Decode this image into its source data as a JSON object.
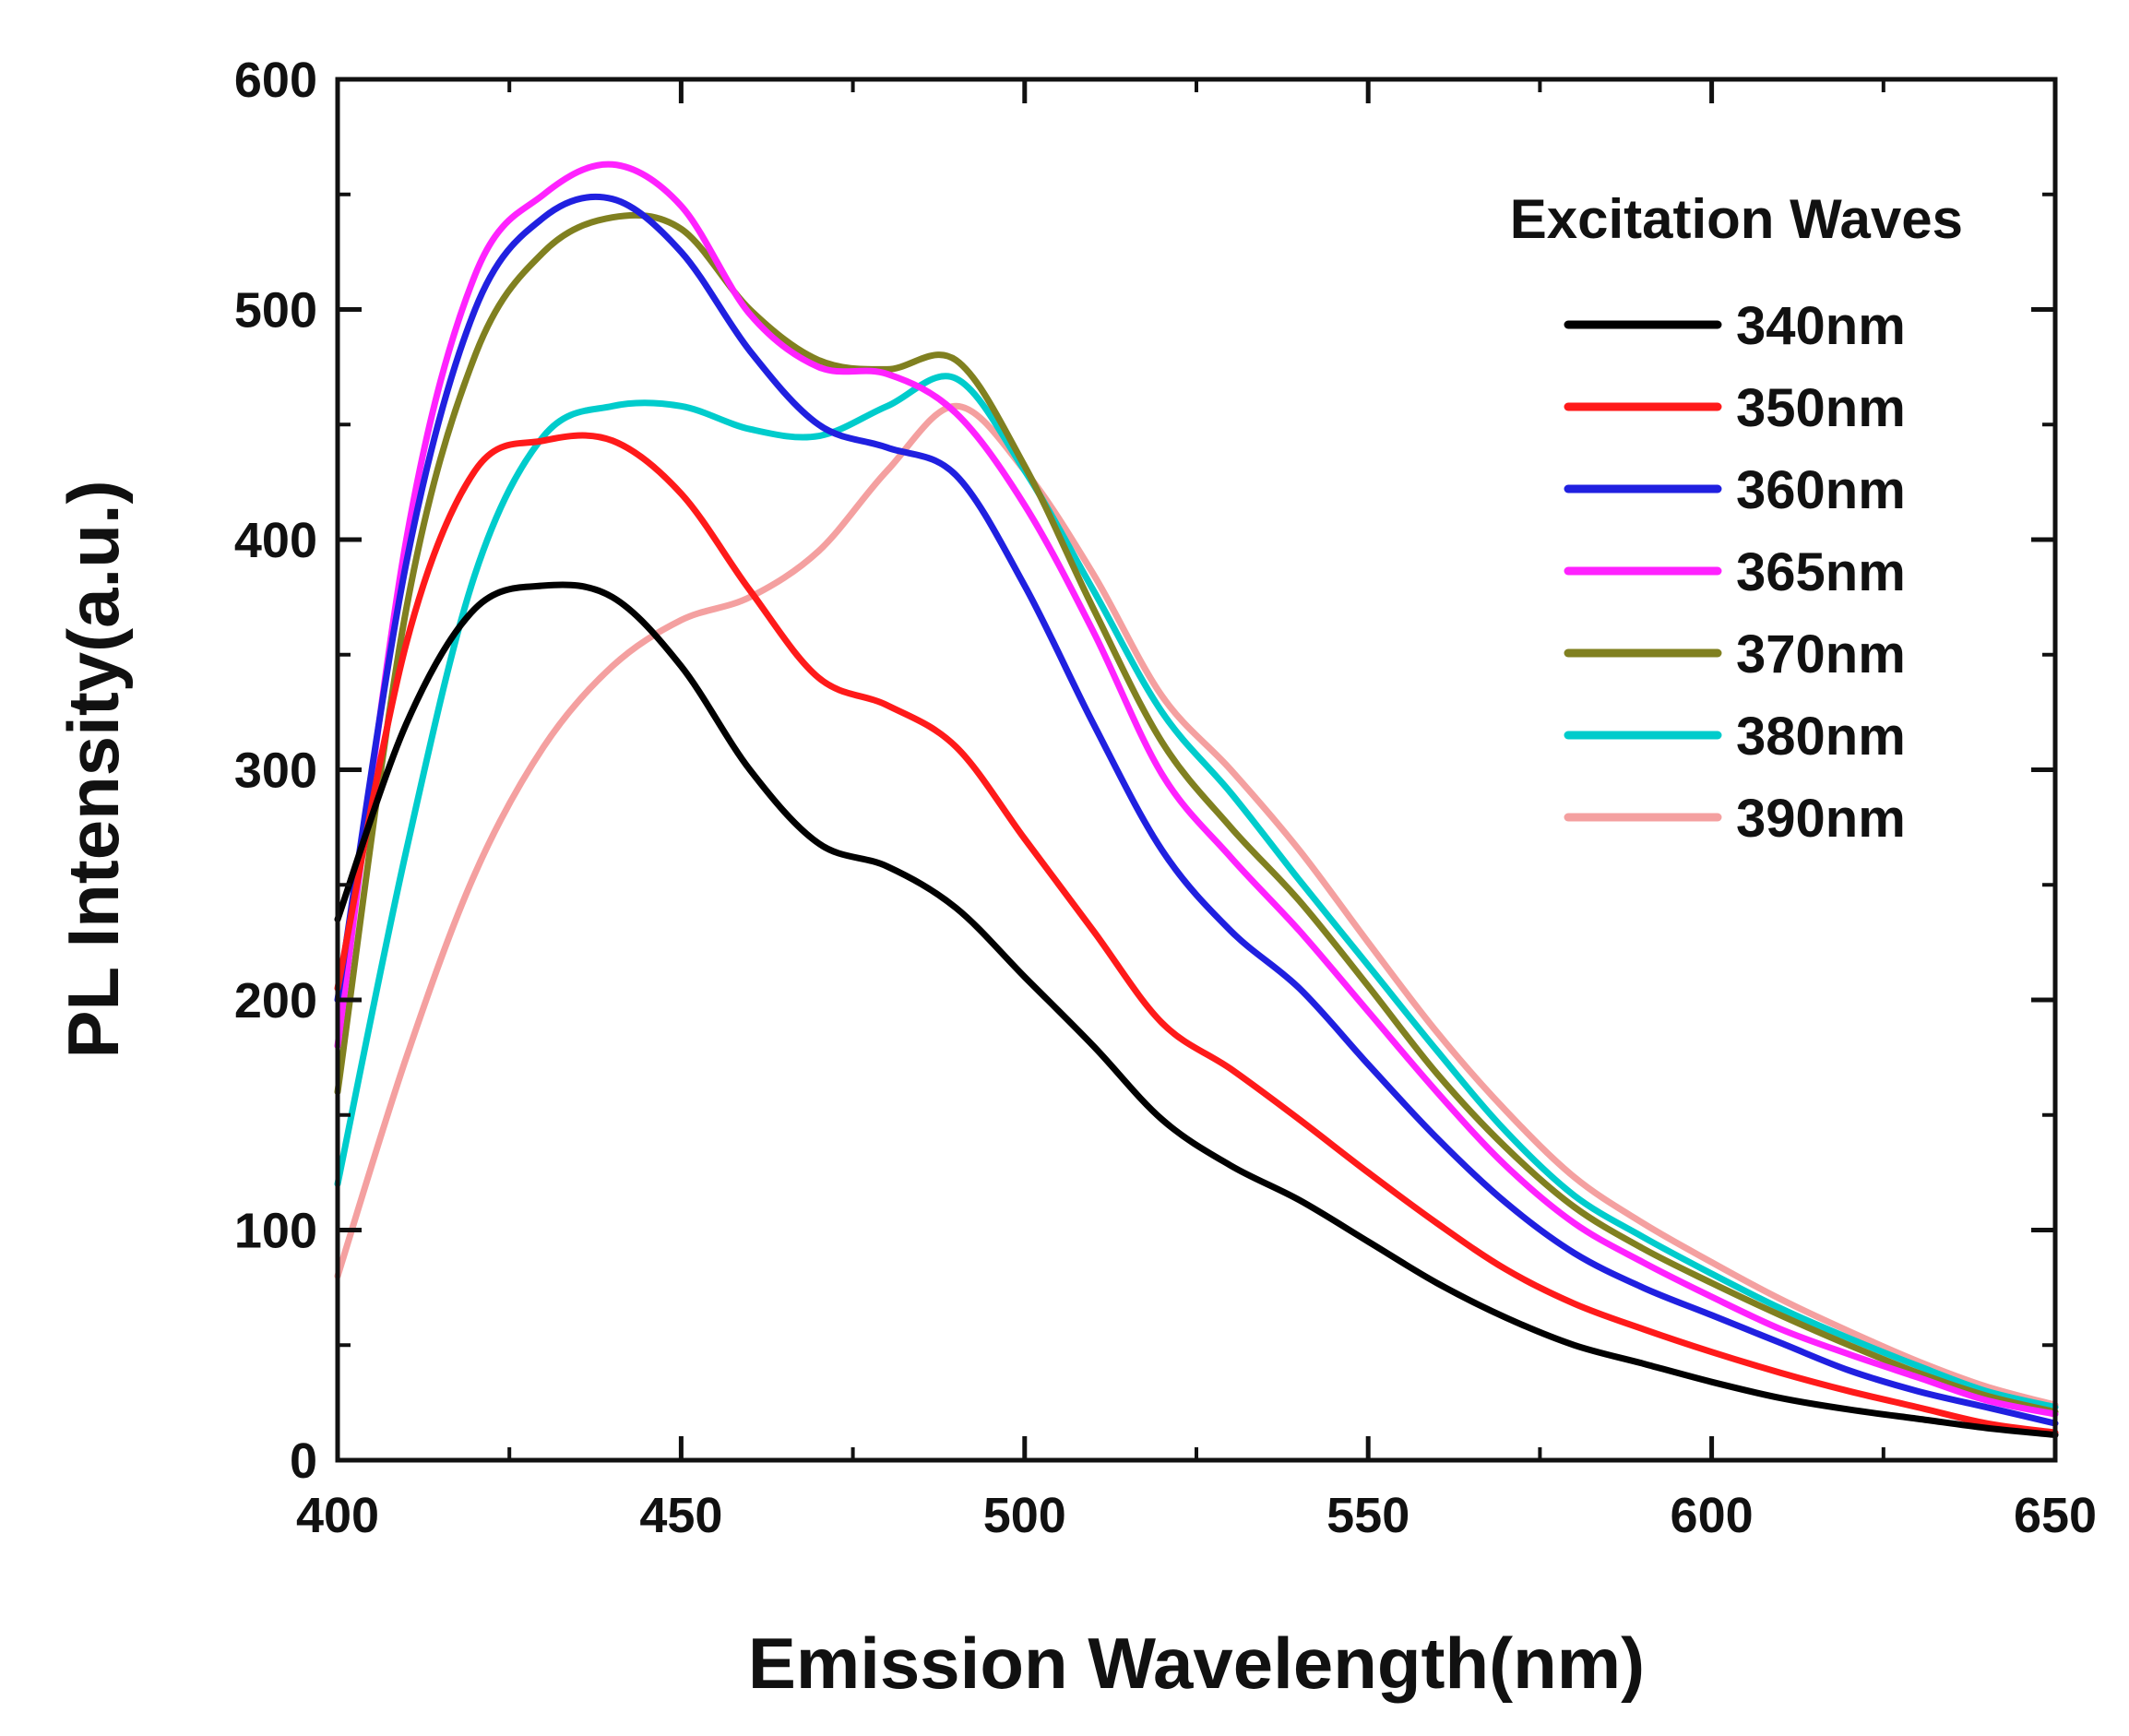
{
  "chart_data": {
    "type": "line",
    "title": "",
    "xlabel": "Emission Wavelength(nm)",
    "ylabel": "PL Intensity(a.u.)",
    "xlim": [
      400,
      650
    ],
    "ylim": [
      0,
      600
    ],
    "xticks": [
      400,
      450,
      500,
      550,
      600,
      650
    ],
    "yticks": [
      0,
      100,
      200,
      300,
      400,
      500,
      600
    ],
    "xtick_labels": [
      "400",
      "450",
      "500",
      "550",
      "600",
      "650"
    ],
    "ytick_labels": [
      "0",
      "100",
      "200",
      "300",
      "400",
      "500",
      "600"
    ],
    "grid": false,
    "legend": {
      "title": "Excitation Waves",
      "position": "top-right"
    },
    "x": [
      400,
      410,
      420,
      430,
      440,
      450,
      460,
      470,
      480,
      490,
      500,
      510,
      520,
      530,
      540,
      550,
      560,
      570,
      580,
      590,
      600,
      610,
      620,
      630,
      640,
      650
    ],
    "series": [
      {
        "name": "340nm",
        "color": "#000000",
        "values": [
          235,
          320,
          370,
          380,
          375,
          345,
          300,
          268,
          258,
          240,
          210,
          180,
          148,
          128,
          113,
          95,
          77,
          62,
          50,
          42,
          34,
          27,
          22,
          18,
          14,
          11
        ]
      },
      {
        "name": "350nm",
        "color": "#ff1a1a",
        "values": [
          205,
          355,
          430,
          443,
          443,
          420,
          378,
          340,
          328,
          310,
          270,
          230,
          190,
          170,
          148,
          125,
          103,
          83,
          68,
          57,
          47,
          38,
          30,
          23,
          16,
          12
        ]
      },
      {
        "name": "360nm",
        "color": "#2020e0",
        "values": [
          200,
          390,
          500,
          540,
          548,
          525,
          482,
          450,
          440,
          428,
          380,
          320,
          265,
          230,
          205,
          172,
          140,
          112,
          90,
          75,
          63,
          51,
          39,
          30,
          23,
          16
        ]
      },
      {
        "name": "365nm",
        "color": "#ff22ff",
        "values": [
          180,
          400,
          515,
          550,
          563,
          545,
          498,
          475,
          472,
          455,
          415,
          360,
          298,
          262,
          230,
          195,
          160,
          128,
          103,
          86,
          71,
          57,
          46,
          36,
          26,
          20
        ]
      },
      {
        "name": "370nm",
        "color": "#808020",
        "values": [
          160,
          370,
          480,
          525,
          540,
          535,
          500,
          478,
          474,
          478,
          432,
          370,
          312,
          275,
          243,
          206,
          168,
          136,
          110,
          92,
          77,
          63,
          50,
          38,
          28,
          21
        ]
      },
      {
        "name": "380nm",
        "color": "#00cccc",
        "values": [
          120,
          265,
          385,
          445,
          458,
          458,
          448,
          445,
          458,
          470,
          430,
          378,
          325,
          290,
          252,
          215,
          178,
          143,
          115,
          97,
          81,
          66,
          53,
          41,
          30,
          23
        ]
      },
      {
        "name": "390nm",
        "color": "#f4a0a0",
        "values": [
          80,
          175,
          255,
          310,
          345,
          365,
          375,
          395,
          430,
          458,
          430,
          385,
          332,
          300,
          265,
          225,
          186,
          152,
          123,
          103,
          86,
          70,
          56,
          43,
          32,
          24
        ]
      }
    ]
  }
}
